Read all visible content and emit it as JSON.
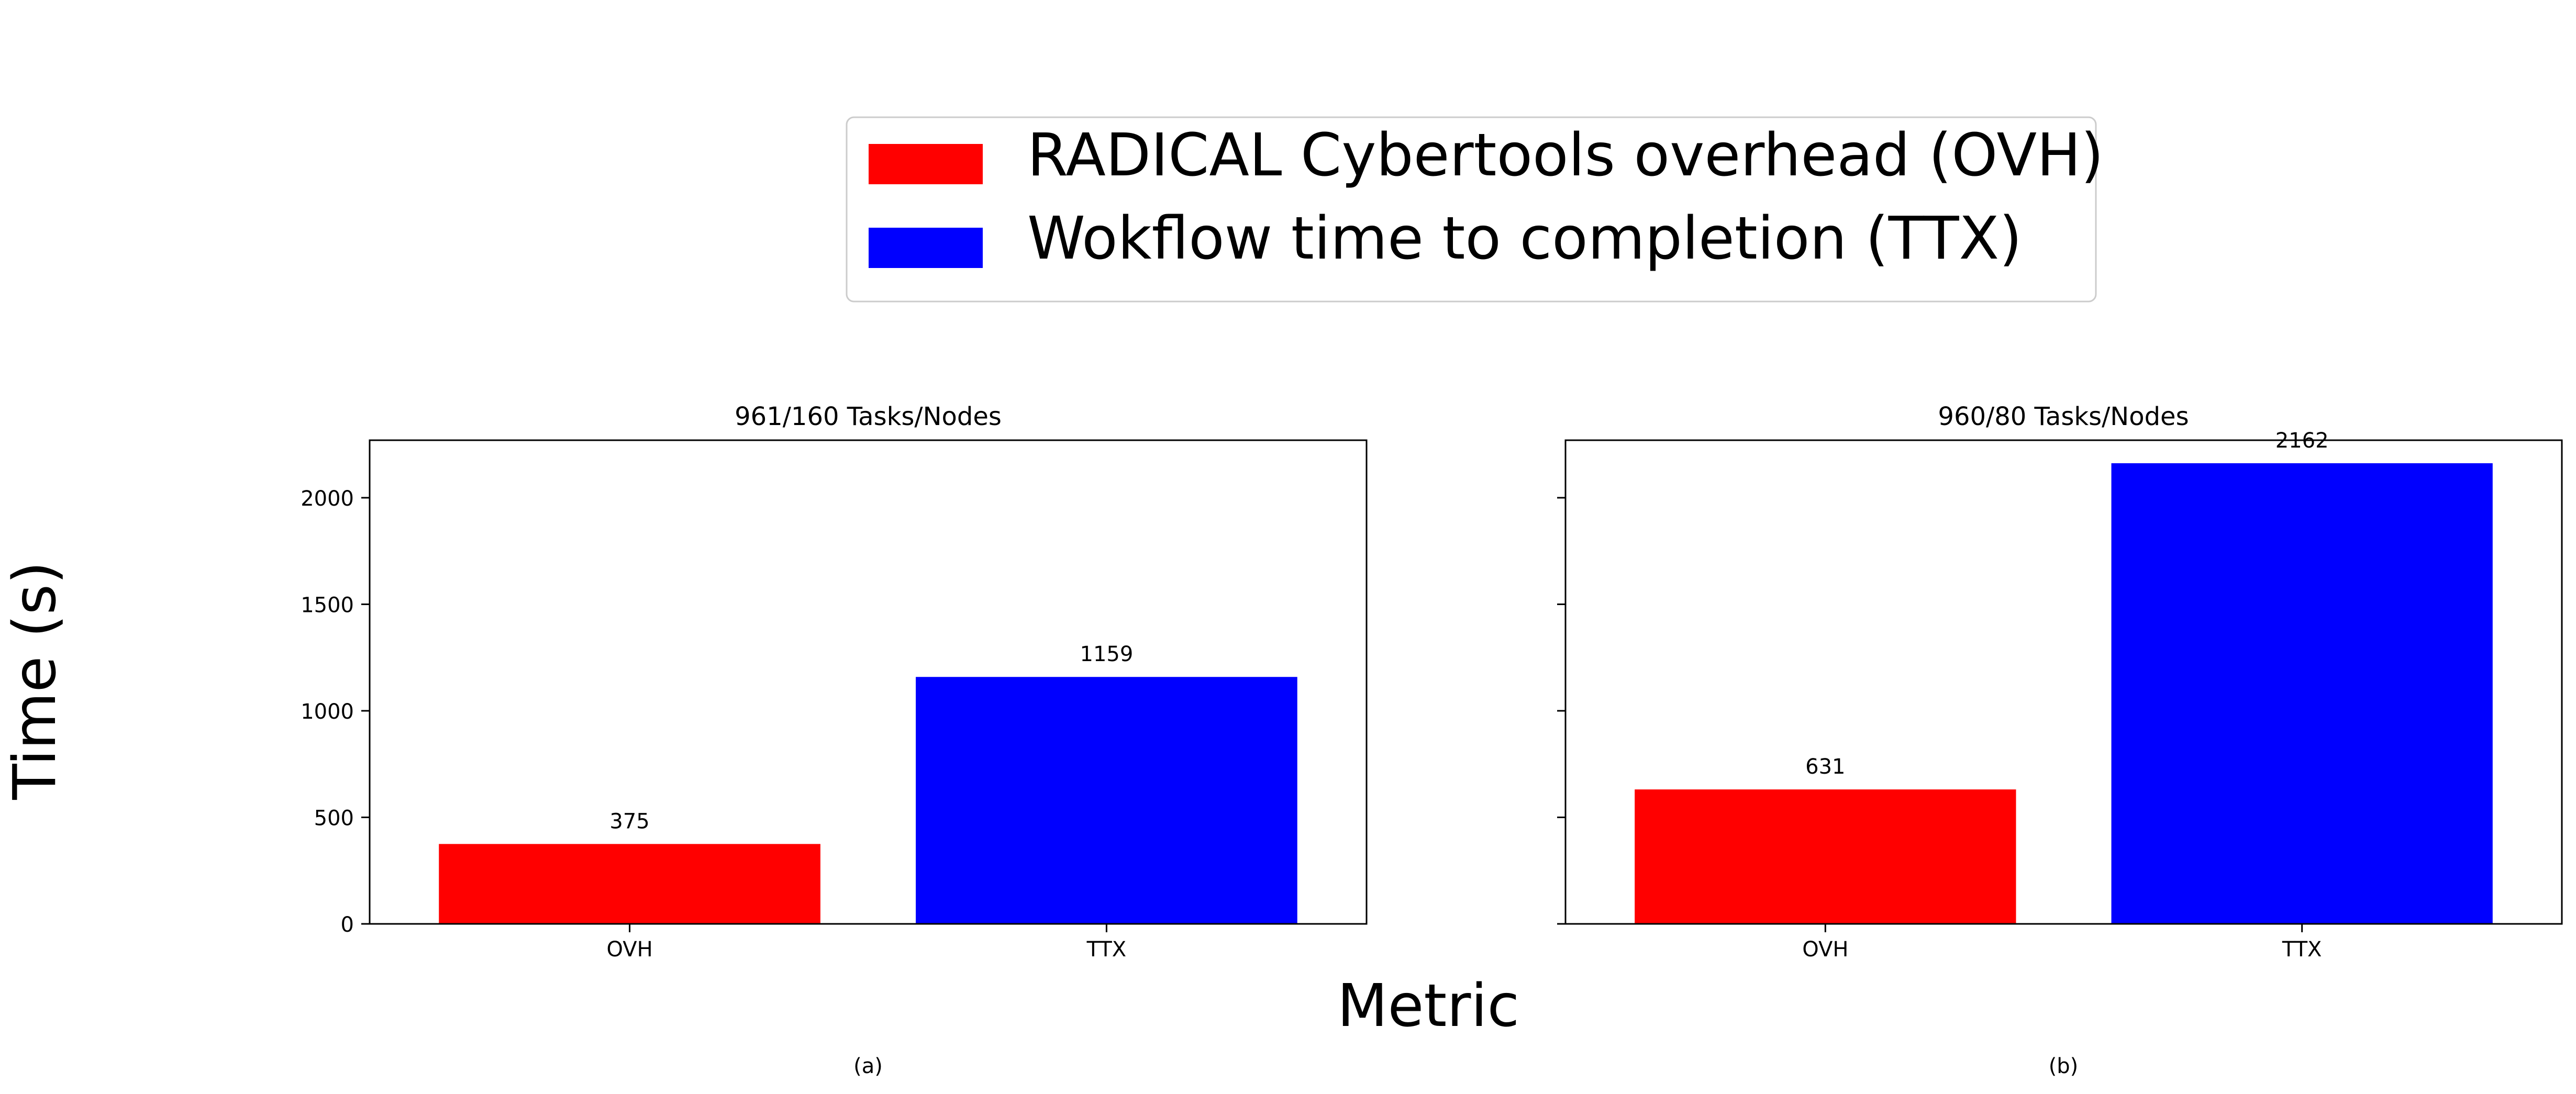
{
  "figure": {
    "ylabel": "Time (s)",
    "xlabel": "Metric",
    "legend": {
      "placement": "top-center",
      "items": [
        {
          "label": "RADICAL Cybertools overhead (OVH)",
          "color": "#ff0000"
        },
        {
          "label": "Wokflow time to completion (TTX)",
          "color": "#0000ff"
        }
      ]
    }
  },
  "chart_data": [
    {
      "type": "bar",
      "title": "961/160 Tasks/Nodes",
      "caption": "(a)",
      "categories": [
        "OVH",
        "TTX"
      ],
      "values": [
        375,
        1159
      ],
      "value_labels": [
        "375",
        "1159"
      ],
      "colors": [
        "#ff0000",
        "#0000ff"
      ],
      "ylim": [
        0,
        2270
      ],
      "yticks": [
        0,
        500,
        1000,
        1500,
        2000
      ],
      "ytick_labels": [
        "0",
        "500",
        "1000",
        "1500",
        "2000"
      ],
      "show_ytick_labels": true,
      "grid": false
    },
    {
      "type": "bar",
      "title": "960/80 Tasks/Nodes",
      "caption": "(b)",
      "categories": [
        "OVH",
        "TTX"
      ],
      "values": [
        631,
        2162
      ],
      "value_labels": [
        "631",
        "2162"
      ],
      "colors": [
        "#ff0000",
        "#0000ff"
      ],
      "ylim": [
        0,
        2270
      ],
      "yticks": [
        0,
        500,
        1000,
        1500,
        2000
      ],
      "ytick_labels": [
        "0",
        "500",
        "1000",
        "1500",
        "2000"
      ],
      "show_ytick_labels": false,
      "grid": false
    }
  ]
}
